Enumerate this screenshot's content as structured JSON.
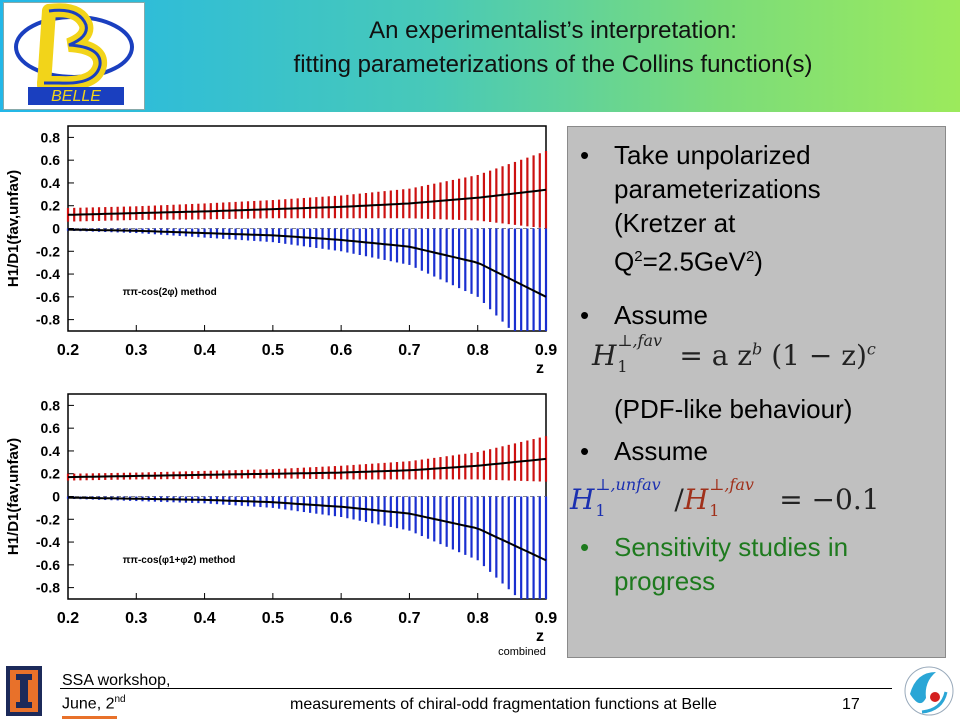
{
  "header": {
    "logo_text": "BELLE",
    "title_line1": "An experimentalist’s interpretation:",
    "title_line2": "fitting parameterizations of the Collins function(s)"
  },
  "bullets": {
    "b1_l1": "Take unpolarized",
    "b1_l2": "parameterizations",
    "b1_l3": "(Kretzer at",
    "b1_l4_q": "Q",
    "b1_l4_sup1": "2",
    "b1_l4_mid": "=2.5GeV",
    "b1_l4_sup2": "2",
    "b1_l4_end": ")",
    "b2": "Assume",
    "eq1_lhs": "H",
    "eq1_sup": "⊥,fav",
    "eq1_sub": "1",
    "eq1_rhs": "= a  z",
    "eq1_b": "b",
    "eq1_tail": " (1 − z)",
    "eq1_c": "c",
    "b2_note": "(PDF-like behaviour)",
    "b3": "Assume",
    "eq2_h1": "H",
    "eq2_sup1": "⊥,unfav",
    "eq2_sub1": "1",
    "eq2_slash": "/",
    "eq2_h2": "H",
    "eq2_sup2": "⊥,fav",
    "eq2_sub2": "1",
    "eq2_rhs": "= −0.1",
    "b4_l1": "Sensitivity studies in",
    "b4_l2": "progress",
    "bullet_char": "•"
  },
  "footer": {
    "workshop": "SSA workshop,",
    "date": "June, 2",
    "date_sup": "nd",
    "subtitle": "measurements of chiral-odd fragmentation functions at Belle",
    "page": "17"
  },
  "chart_data": [
    {
      "type": "line",
      "ylabel": "H1/D1(fav,unfav)",
      "xlabel": "z",
      "annotation": "ππ-cos(2φ) method",
      "xlim": [
        0.2,
        0.9
      ],
      "ylim": [
        -0.9,
        0.9
      ],
      "xticks": [
        "0.2",
        "0.3",
        "0.4",
        "0.5",
        "0.6",
        "0.7",
        "0.8",
        "0.9"
      ],
      "yticks": [
        "0.8",
        "0.6",
        "0.4",
        "0.2",
        "0",
        "-0.2",
        "-0.4",
        "-0.6",
        "-0.8"
      ],
      "series": [
        {
          "color": "#cc1111",
          "x": [
            0.2,
            0.3,
            0.4,
            0.5,
            0.6,
            0.7,
            0.8,
            0.9
          ],
          "y": [
            0.12,
            0.135,
            0.15,
            0.17,
            0.19,
            0.22,
            0.27,
            0.34
          ],
          "err": [
            0.06,
            0.06,
            0.07,
            0.08,
            0.1,
            0.13,
            0.2,
            0.34
          ]
        },
        {
          "color": "#1a2fd0",
          "x": [
            0.2,
            0.3,
            0.4,
            0.5,
            0.6,
            0.7,
            0.8,
            0.9
          ],
          "y": [
            -0.01,
            -0.02,
            -0.04,
            -0.06,
            -0.1,
            -0.16,
            -0.3,
            -0.6
          ],
          "err": [
            0.01,
            0.02,
            0.04,
            0.06,
            0.1,
            0.16,
            0.3,
            0.6
          ]
        }
      ]
    },
    {
      "type": "line",
      "ylabel": "H1/D1(fav,unfav)",
      "xlabel": "z",
      "annotation": "ππ-cos(φ1+φ2) method",
      "xlim": [
        0.2,
        0.9
      ],
      "ylim": [
        -0.9,
        0.9
      ],
      "xticks": [
        "0.2",
        "0.3",
        "0.4",
        "0.5",
        "0.6",
        "0.7",
        "0.8",
        "0.9"
      ],
      "yticks": [
        "0.8",
        "0.6",
        "0.4",
        "0.2",
        "0",
        "-0.2",
        "-0.4",
        "-0.6",
        "-0.8"
      ],
      "series": [
        {
          "color": "#cc1111",
          "x": [
            0.2,
            0.3,
            0.4,
            0.5,
            0.6,
            0.7,
            0.8,
            0.9
          ],
          "y": [
            0.17,
            0.18,
            0.19,
            0.2,
            0.21,
            0.23,
            0.27,
            0.33
          ],
          "err": [
            0.03,
            0.03,
            0.035,
            0.04,
            0.06,
            0.08,
            0.12,
            0.2
          ]
        },
        {
          "color": "#1a2fd0",
          "x": [
            0.2,
            0.3,
            0.4,
            0.5,
            0.6,
            0.7,
            0.8,
            0.9
          ],
          "y": [
            -0.01,
            -0.02,
            -0.03,
            -0.05,
            -0.09,
            -0.15,
            -0.28,
            -0.56
          ],
          "err": [
            0.01,
            0.02,
            0.03,
            0.05,
            0.09,
            0.15,
            0.28,
            0.56
          ]
        }
      ],
      "footer_label": "combined"
    }
  ]
}
